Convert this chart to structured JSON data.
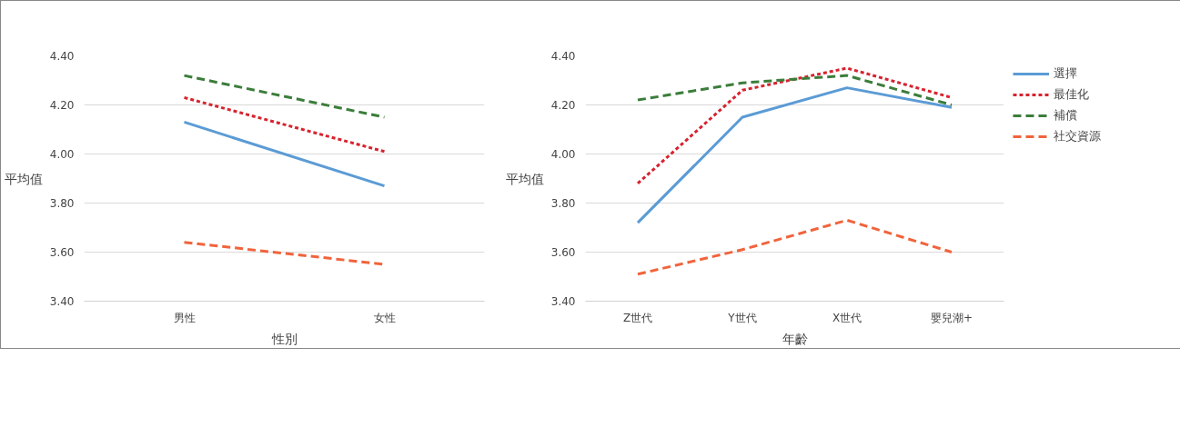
{
  "chart_data": [
    {
      "type": "line",
      "xlabel": "性別",
      "ylabel": "平均值",
      "categories": [
        "男性",
        "女性"
      ],
      "ylim": [
        3.4,
        4.4
      ],
      "yticks": [
        {
          "value": 3.4,
          "label": "3.40"
        },
        {
          "value": 3.6,
          "label": "3.60"
        },
        {
          "value": 3.8,
          "label": "3.80"
        },
        {
          "value": 4.0,
          "label": "4.00"
        },
        {
          "value": 4.2,
          "label": "4.20"
        },
        {
          "value": 4.4,
          "label": "4.40"
        }
      ],
      "grid": "y",
      "legend": false,
      "marker": "none",
      "series": [
        {
          "color": "#5b9bd5",
          "line_style": "solid",
          "values": [
            4.13,
            3.87
          ]
        },
        {
          "color": "#d7232f",
          "line_style": "dotted",
          "values": [
            4.23,
            4.01
          ]
        },
        {
          "color": "#3b7d3b",
          "line_style": "dashed",
          "values": [
            4.32,
            4.15
          ]
        },
        {
          "color": "#f0643c",
          "line_style": "dashed",
          "values": [
            3.64,
            3.55
          ]
        }
      ]
    },
    {
      "type": "line",
      "xlabel": "年齡",
      "ylabel": "平均值",
      "categories": [
        "Z世代",
        "Y世代",
        "X世代",
        "嬰兒潮+"
      ],
      "ylim": [
        3.4,
        4.4
      ],
      "yticks": [
        {
          "value": 3.4,
          "label": "3.40"
        },
        {
          "value": 3.6,
          "label": "3.60"
        },
        {
          "value": 3.8,
          "label": "3.80"
        },
        {
          "value": 4.0,
          "label": "4.00"
        },
        {
          "value": 4.2,
          "label": "4.20"
        },
        {
          "value": 4.4,
          "label": "4.40"
        }
      ],
      "grid": "y",
      "legend": "right",
      "marker": "none",
      "series": [
        {
          "name": "選擇",
          "color": "#5b9bd5",
          "line_style": "solid",
          "values": [
            3.72,
            4.15,
            4.27,
            4.19
          ]
        },
        {
          "name": "最佳化",
          "color": "#d7232f",
          "line_style": "dotted",
          "values": [
            3.88,
            4.26,
            4.35,
            4.23
          ]
        },
        {
          "name": "補償",
          "color": "#3b7d3b",
          "line_style": "dashed",
          "values": [
            4.22,
            4.29,
            4.32,
            4.2
          ]
        },
        {
          "name": "社交資源",
          "color": "#f0643c",
          "line_style": "dashed",
          "values": [
            3.51,
            3.61,
            3.73,
            3.6
          ]
        }
      ]
    }
  ]
}
